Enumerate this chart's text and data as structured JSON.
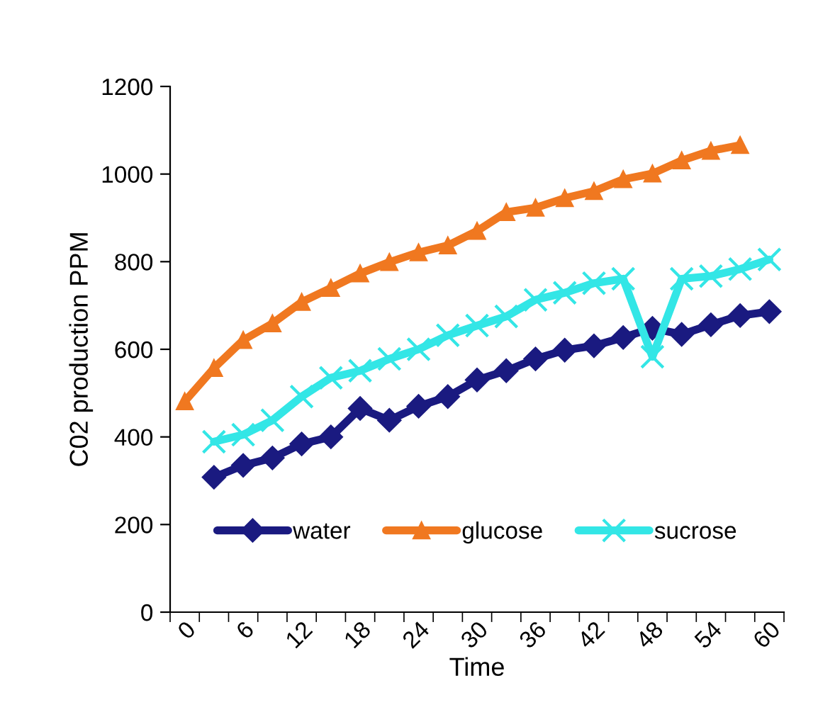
{
  "chart_data": {
    "type": "line",
    "xlabel": "Time",
    "ylabel": "C02 production PPM",
    "categories": [
      "0",
      null,
      "6",
      null,
      "12",
      null,
      "18",
      null,
      "24",
      null,
      "30",
      null,
      "36",
      null,
      "42",
      null,
      "48",
      null,
      "54",
      null,
      "60"
    ],
    "series": [
      {
        "name": "water",
        "color": "#1a1a80",
        "marker": "diamond",
        "values": [
          null,
          308,
          335,
          352,
          384,
          400,
          465,
          438,
          470,
          492,
          530,
          551,
          578,
          598,
          608,
          627,
          648,
          634,
          656,
          677,
          686
        ]
      },
      {
        "name": "glucose",
        "color": "#f07820",
        "marker": "triangle",
        "values": [
          481,
          557,
          621,
          659,
          708,
          740,
          773,
          799,
          821,
          837,
          870,
          913,
          923,
          945,
          961,
          988,
          1001,
          1031,
          1053,
          1066,
          null
        ]
      },
      {
        "name": "sucrose",
        "color": "#33e6e6",
        "marker": "cross",
        "values": [
          null,
          389,
          405,
          438,
          492,
          535,
          551,
          578,
          600,
          632,
          654,
          675,
          713,
          729,
          751,
          761,
          583,
          761,
          767,
          783,
          805
        ]
      }
    ],
    "ylim": [
      0,
      1200
    ],
    "yticks": [
      0,
      200,
      400,
      600,
      800,
      1000,
      1200
    ],
    "grid": false,
    "legend": "bottom"
  }
}
